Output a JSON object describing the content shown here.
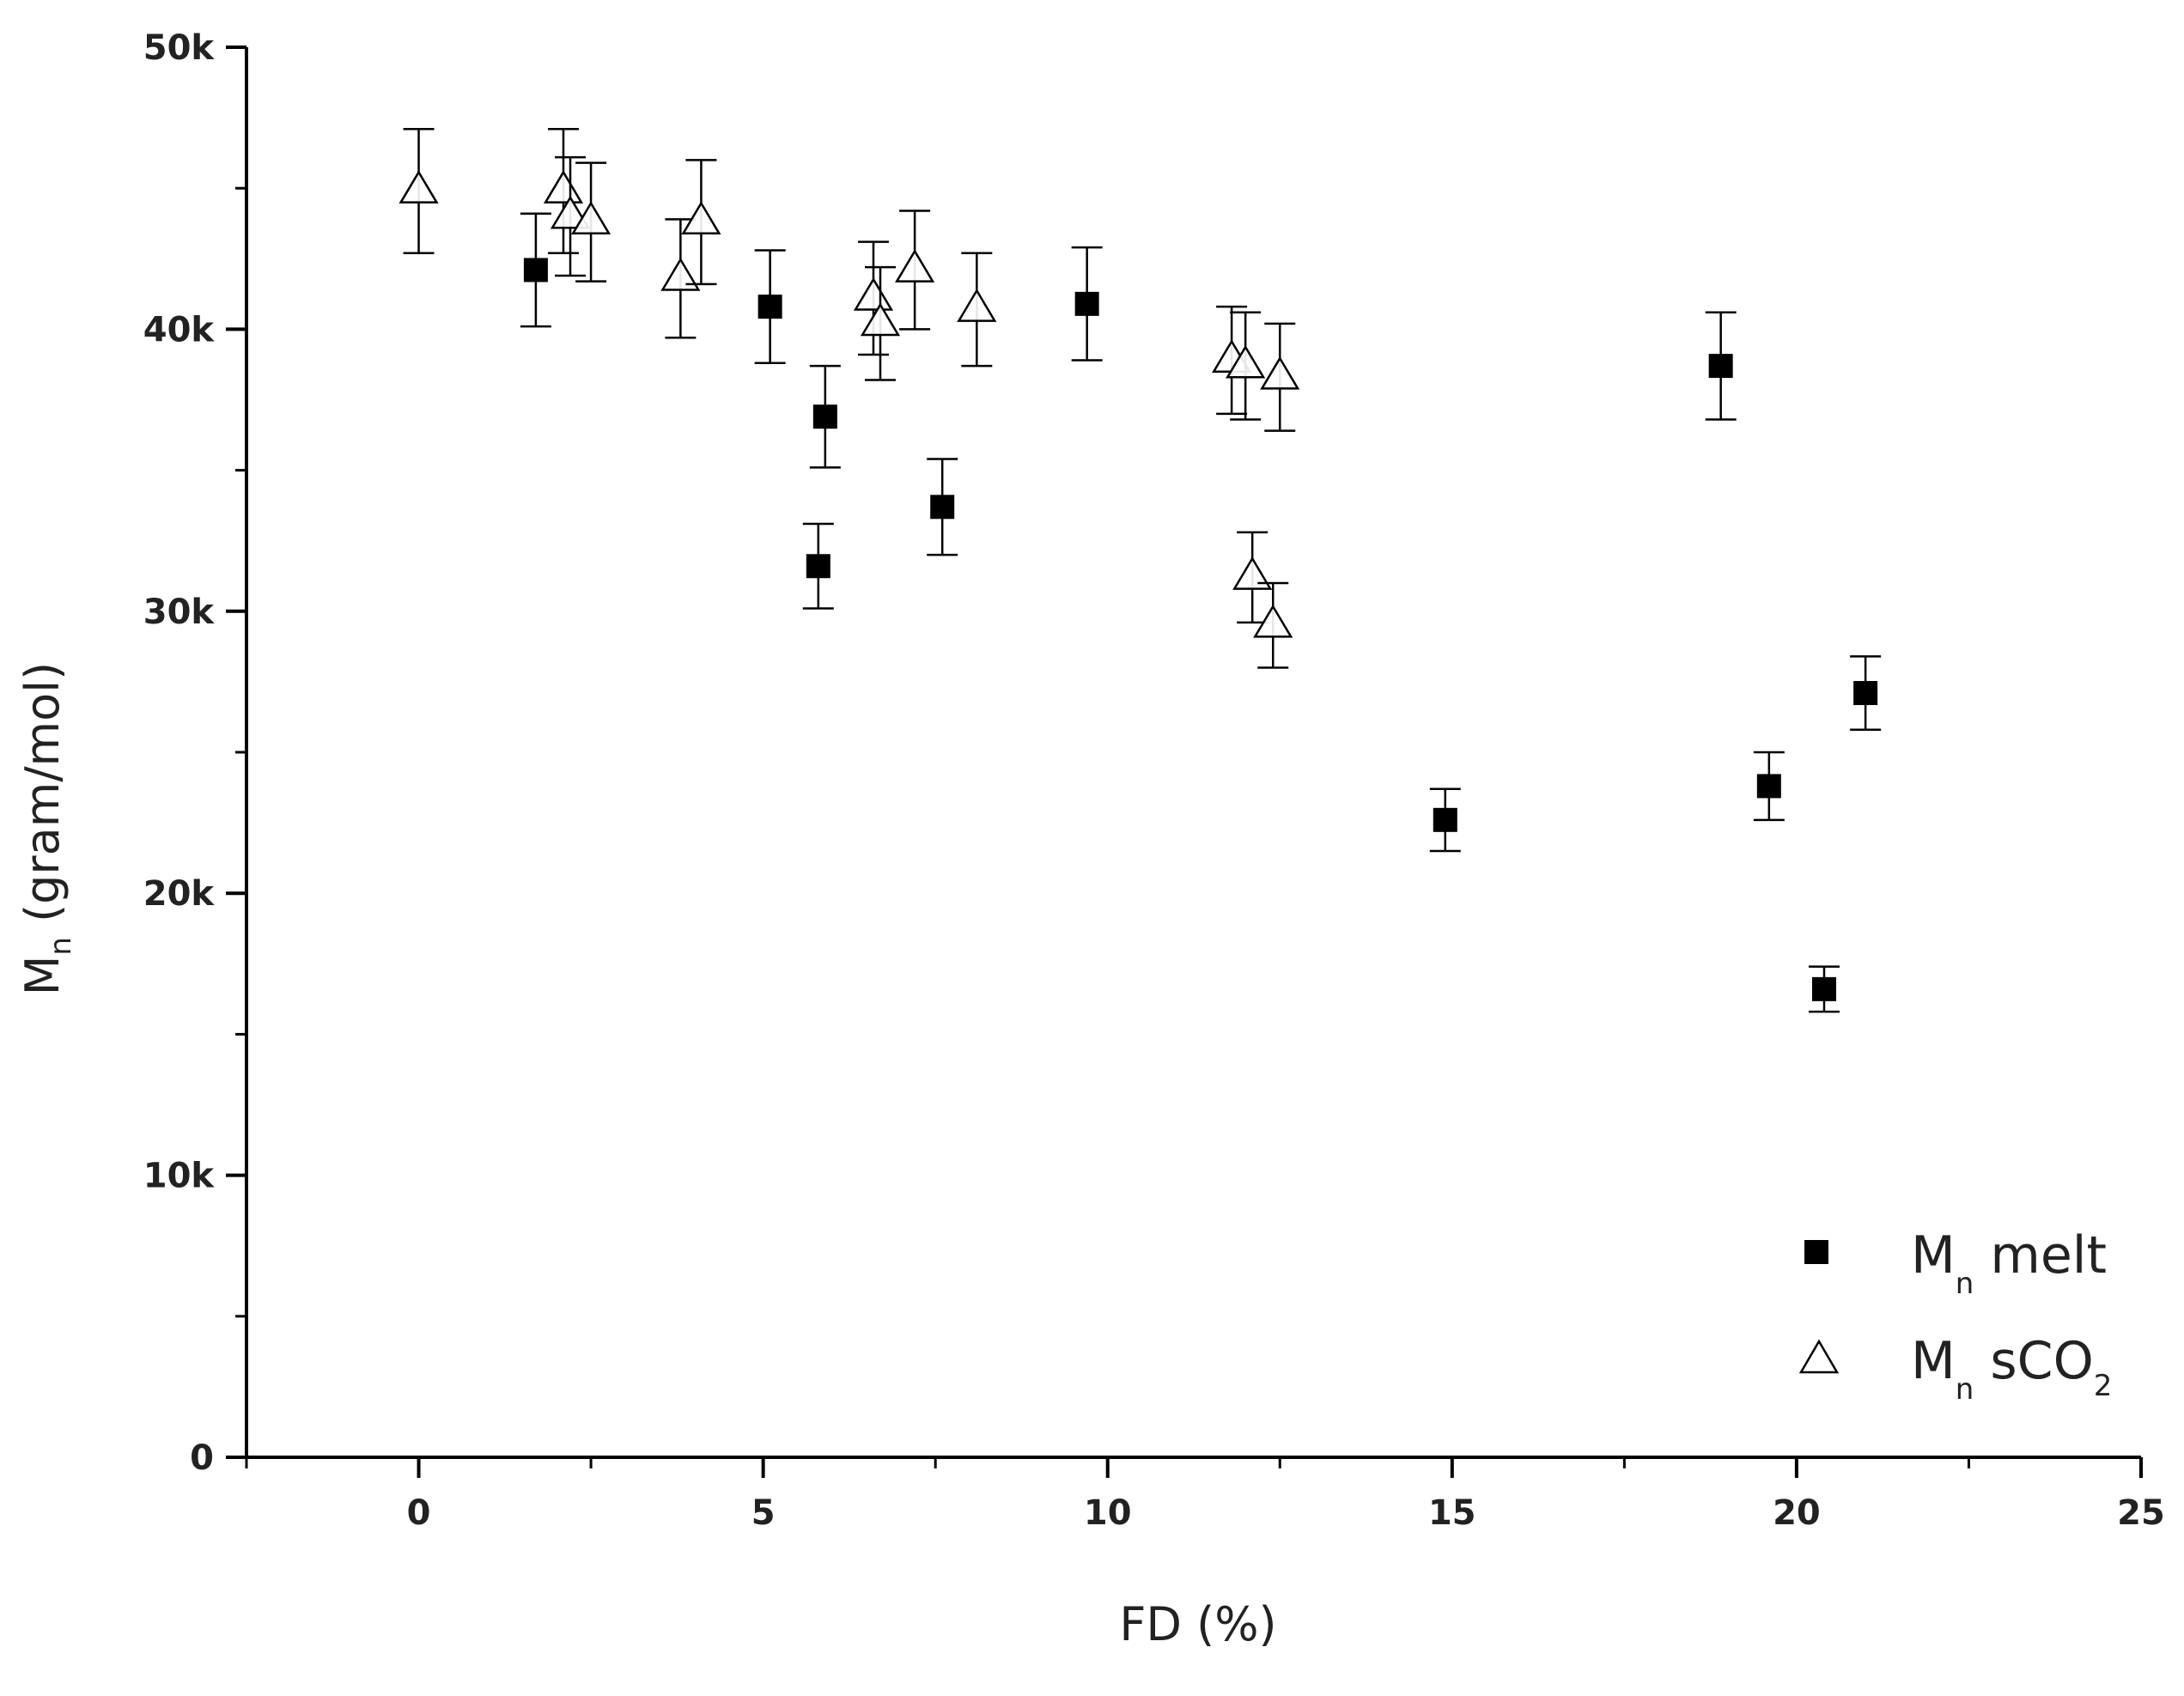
{
  "chart_data": {
    "type": "scatter",
    "title": "",
    "xlabel": "FD (%)",
    "ylabel": {
      "main": "M",
      "sub": "n",
      "rest": " (gram/mol)"
    },
    "xlim": [
      -2.5,
      25
    ],
    "ylim": [
      0,
      50000
    ],
    "x_ticks": [
      {
        "value": 0,
        "label": "0"
      },
      {
        "value": 5,
        "label": "5"
      },
      {
        "value": 10,
        "label": "10"
      },
      {
        "value": 15,
        "label": "15"
      },
      {
        "value": 20,
        "label": "20"
      },
      {
        "value": 25,
        "label": "25"
      }
    ],
    "x_minor_ticks": [
      -2.5,
      2.5,
      7.5,
      12.5,
      17.5,
      22.5
    ],
    "y_ticks": [
      {
        "value": 0,
        "label": "0"
      },
      {
        "value": 10000,
        "label": "10k"
      },
      {
        "value": 20000,
        "label": "20k"
      },
      {
        "value": 30000,
        "label": "30k"
      },
      {
        "value": 40000,
        "label": "40k"
      },
      {
        "value": 50000,
        "label": "50k"
      }
    ],
    "y_minor_ticks": [
      5000,
      15000,
      25000,
      35000,
      45000
    ],
    "grid": false,
    "legend_position": "bottom-right",
    "series": [
      {
        "name": "M n melt",
        "legend": {
          "main": "M",
          "sub": "n",
          "rest": " melt",
          "sub2": ""
        },
        "marker": "filled-square",
        "color": "#000000",
        "points": [
          {
            "x": 1.7,
            "y": 42100,
            "err": 2000
          },
          {
            "x": 5.1,
            "y": 40800,
            "err": 2000
          },
          {
            "x": 5.8,
            "y": 31600,
            "err": 1500
          },
          {
            "x": 5.9,
            "y": 36900,
            "err": 1800
          },
          {
            "x": 7.6,
            "y": 33700,
            "err": 1700
          },
          {
            "x": 9.7,
            "y": 40900,
            "err": 2000
          },
          {
            "x": 14.9,
            "y": 22600,
            "err": 1100
          },
          {
            "x": 18.9,
            "y": 38700,
            "err": 1900
          },
          {
            "x": 19.6,
            "y": 23800,
            "err": 1200
          },
          {
            "x": 20.4,
            "y": 16600,
            "err": 800
          },
          {
            "x": 21.0,
            "y": 27100,
            "err": 1300
          }
        ]
      },
      {
        "name": "M n sCO2",
        "legend": {
          "main": "M",
          "sub": "n",
          "rest": " sCO",
          "sub2": "2"
        },
        "marker": "open-triangle",
        "color": "#000000",
        "points": [
          {
            "x": 0.0,
            "y": 44900,
            "err": 2200
          },
          {
            "x": 2.1,
            "y": 44900,
            "err": 2200
          },
          {
            "x": 2.2,
            "y": 44000,
            "err": 2100
          },
          {
            "x": 2.5,
            "y": 43800,
            "err": 2100
          },
          {
            "x": 3.8,
            "y": 41800,
            "err": 2100
          },
          {
            "x": 4.1,
            "y": 43800,
            "err": 2200
          },
          {
            "x": 6.6,
            "y": 41100,
            "err": 2000
          },
          {
            "x": 6.7,
            "y": 40200,
            "err": 2000
          },
          {
            "x": 7.2,
            "y": 42100,
            "err": 2100
          },
          {
            "x": 8.1,
            "y": 40700,
            "err": 2000
          },
          {
            "x": 11.8,
            "y": 38900,
            "err": 1900
          },
          {
            "x": 12.0,
            "y": 38700,
            "err": 1900
          },
          {
            "x": 12.1,
            "y": 31200,
            "err": 1600
          },
          {
            "x": 12.4,
            "y": 29500,
            "err": 1500
          },
          {
            "x": 12.5,
            "y": 38300,
            "err": 1900
          }
        ]
      }
    ]
  }
}
